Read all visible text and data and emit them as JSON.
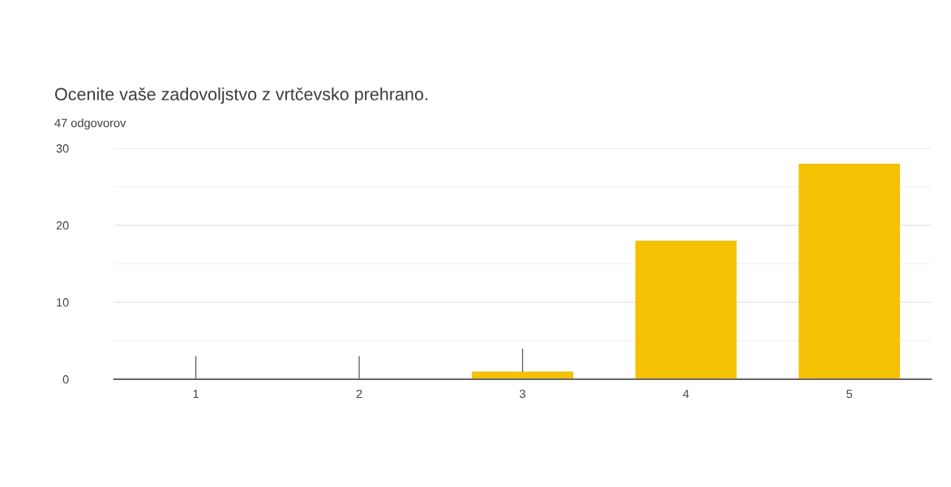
{
  "chart_data": {
    "type": "bar",
    "title": "Ocenite vaše zadovoljstvo z vrtčevsko prehrano.",
    "subtitle": "47 odgovorov",
    "categories": [
      "1",
      "2",
      "3",
      "4",
      "5"
    ],
    "values": [
      0,
      0,
      1,
      18,
      28
    ],
    "color": "#f5c105",
    "ylim": [
      0,
      30
    ],
    "yticks": [
      0,
      {
        "value": 5,
        "label": null
      },
      10,
      {
        "value": 15,
        "label": null
      },
      20,
      {
        "value": 25,
        "label": null
      },
      30
    ],
    "grid": "y"
  }
}
